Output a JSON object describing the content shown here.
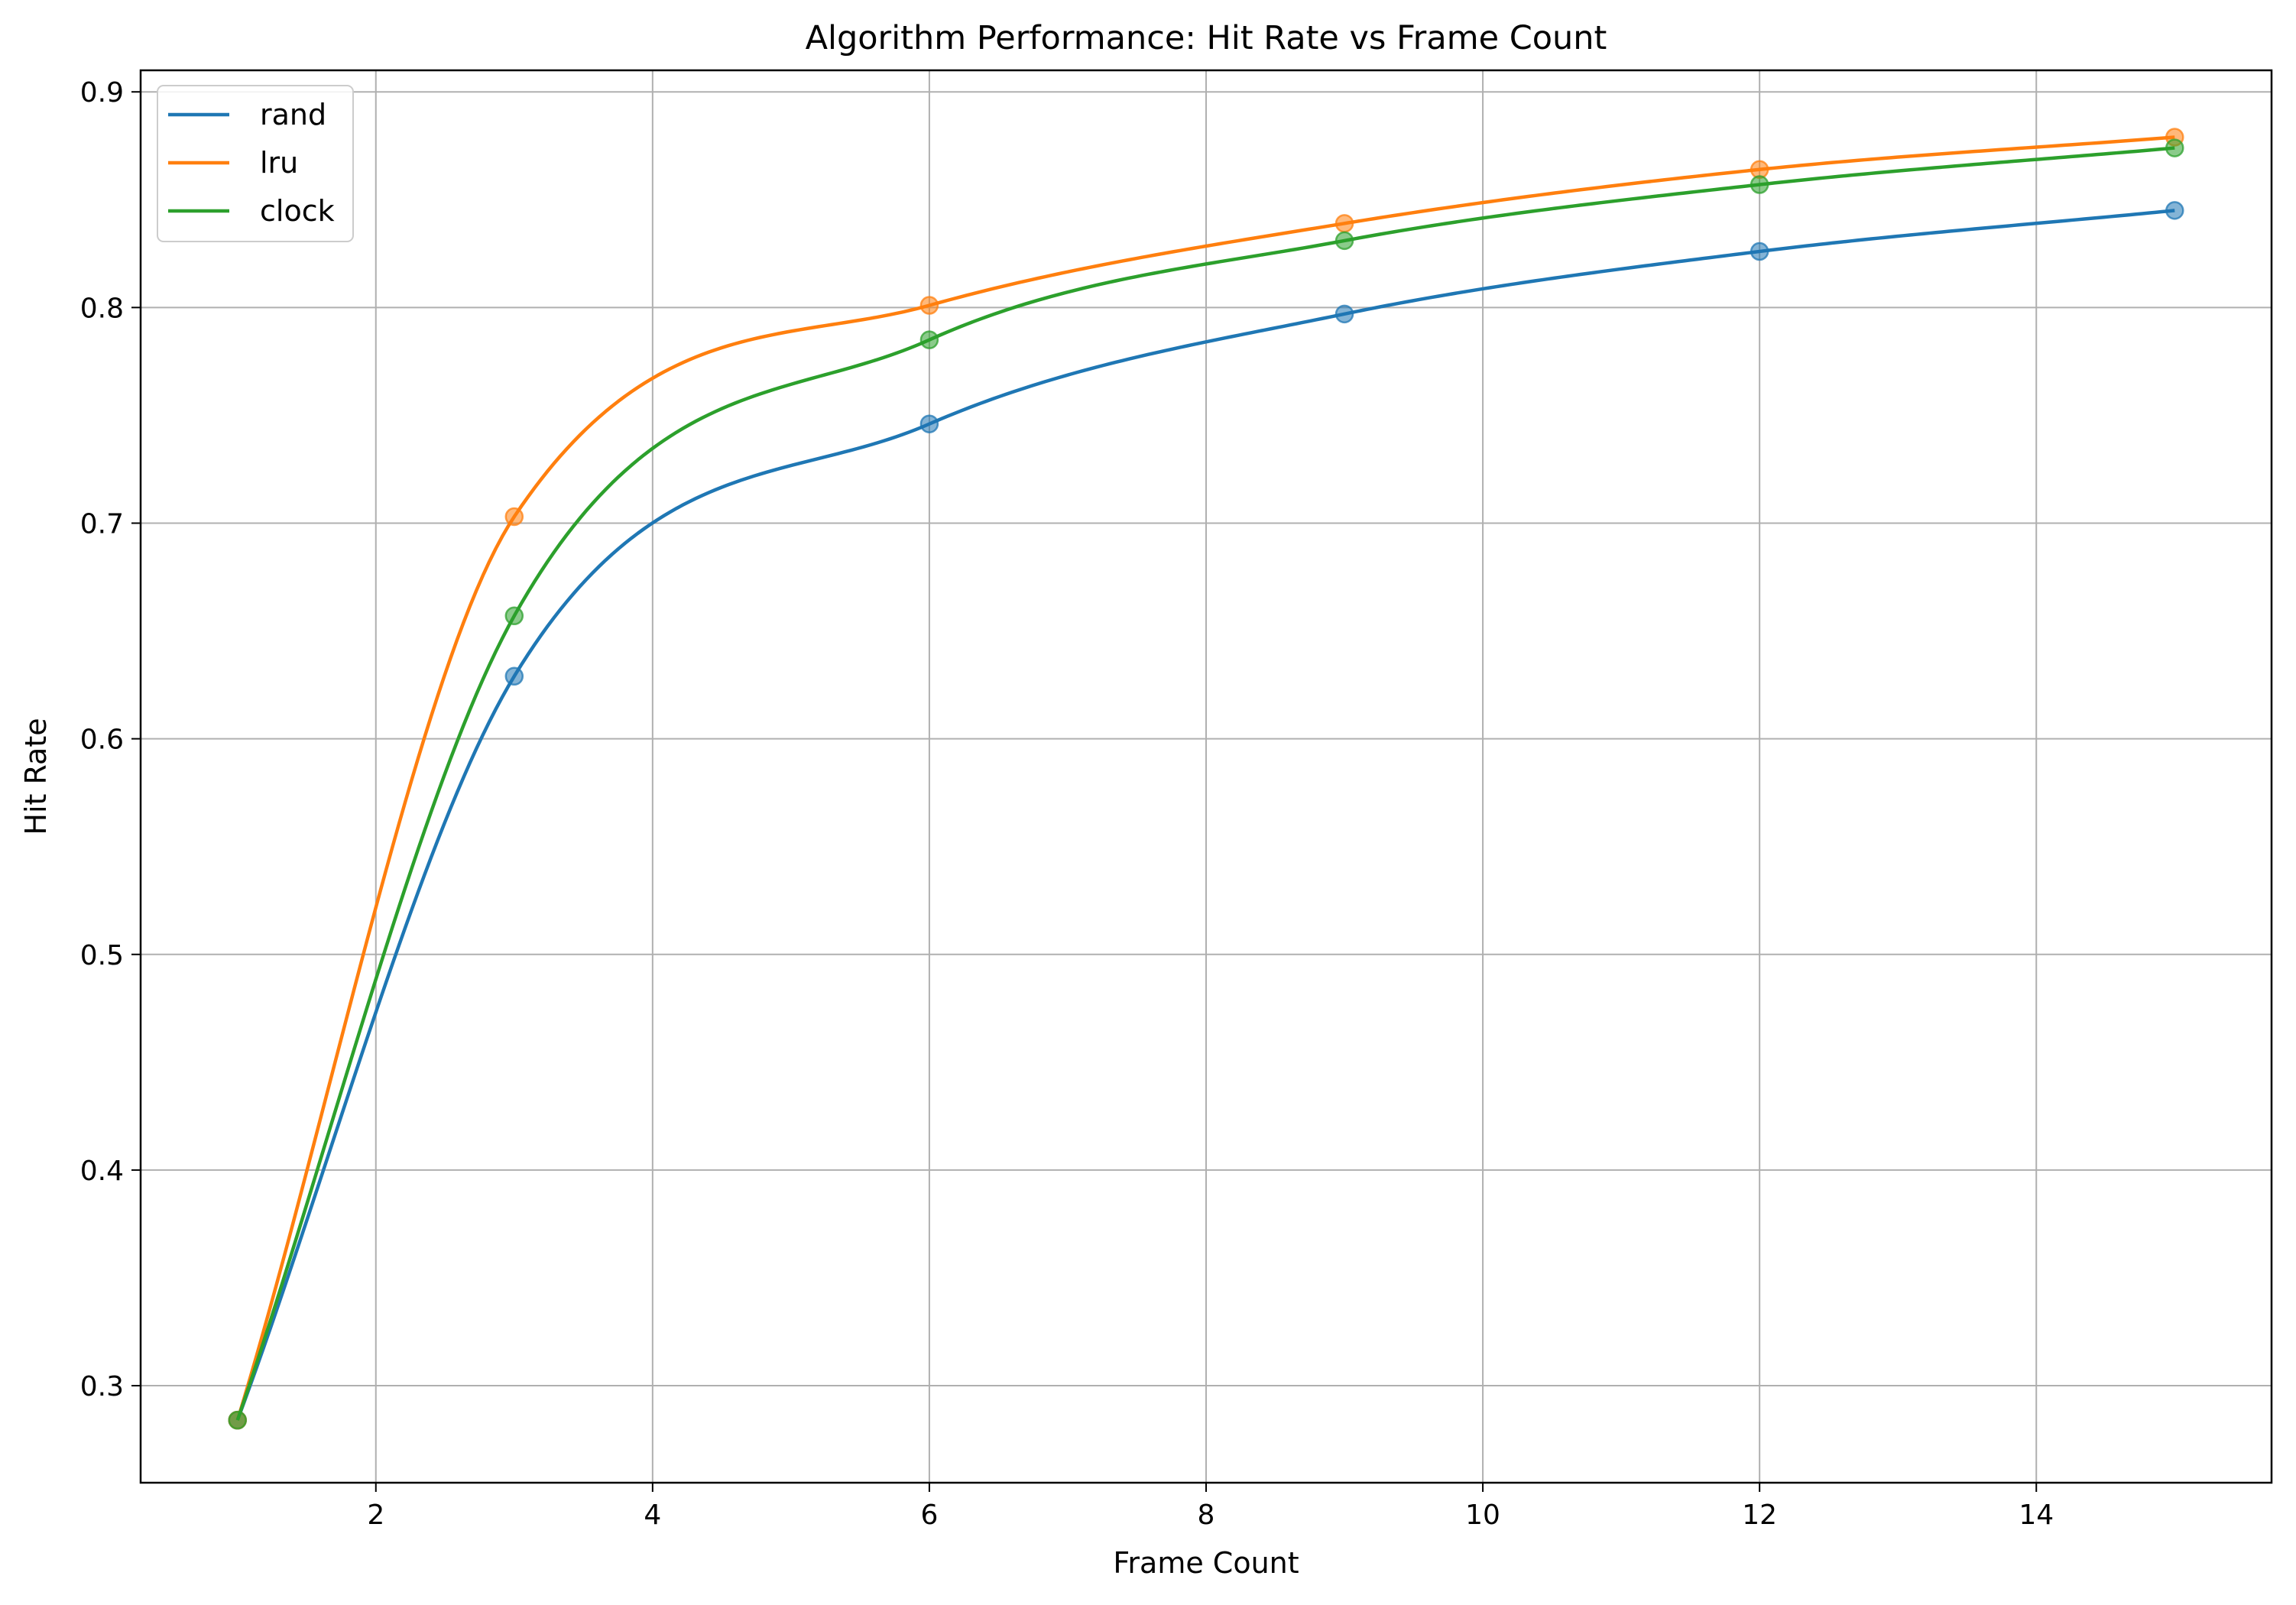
{
  "chart_data": {
    "type": "line",
    "title": "Algorithm Performance: Hit Rate vs Frame Count",
    "xlabel": "Frame Count",
    "ylabel": "Hit Rate",
    "xlim": [
      0.3,
      15.7
    ],
    "ylim": [
      0.255,
      0.91
    ],
    "xticks": [
      2,
      4,
      6,
      8,
      10,
      12,
      14
    ],
    "xtick_labels": [
      "2",
      "4",
      "6",
      "8",
      "10",
      "12",
      "14"
    ],
    "yticks": [
      0.3,
      0.4,
      0.5,
      0.6,
      0.7,
      0.8,
      0.9
    ],
    "ytick_labels": [
      "0.3",
      "0.4",
      "0.5",
      "0.6",
      "0.7",
      "0.8",
      "0.9"
    ],
    "grid": true,
    "legend_position": "top-left",
    "x": [
      1,
      3,
      6,
      9,
      12,
      15
    ],
    "series": [
      {
        "name": "rand",
        "color": "#1f77b4",
        "values": [
          0.284,
          0.629,
          0.746,
          0.797,
          0.826,
          0.845
        ]
      },
      {
        "name": "lru",
        "color": "#ff7f0e",
        "values": [
          0.284,
          0.703,
          0.801,
          0.839,
          0.864,
          0.879
        ]
      },
      {
        "name": "clock",
        "color": "#2ca02c",
        "values": [
          0.284,
          0.657,
          0.785,
          0.831,
          0.857,
          0.874
        ]
      }
    ]
  }
}
